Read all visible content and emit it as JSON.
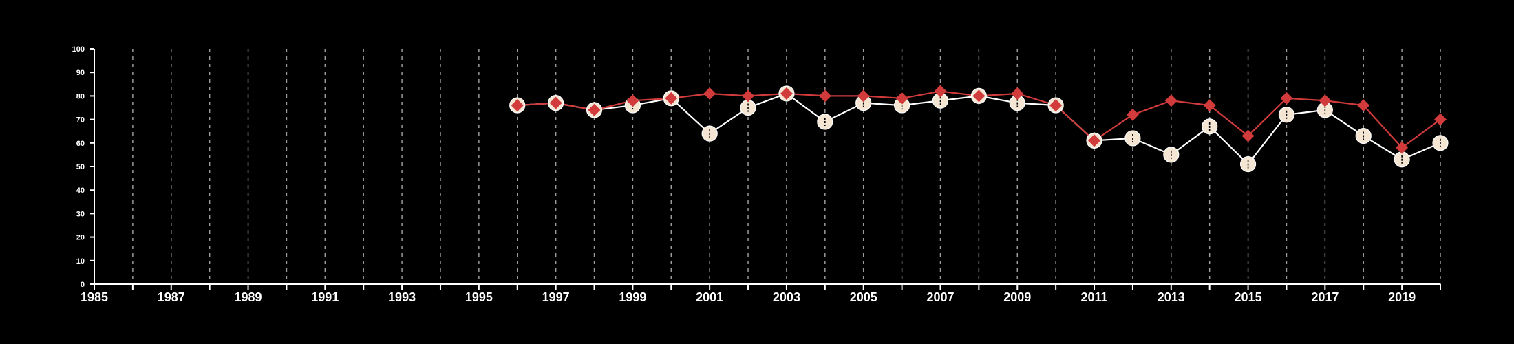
{
  "chart_data": {
    "type": "line",
    "title": "",
    "xlabel": "",
    "ylabel": "",
    "xlim": [
      1985,
      2020
    ],
    "ylim": [
      0,
      100
    ],
    "grid": "vertical dashed",
    "yticks": [
      0,
      10,
      20,
      30,
      40,
      50,
      60,
      70,
      80,
      90,
      100
    ],
    "xticks": [
      1985,
      1986,
      1987,
      1988,
      1989,
      1990,
      1991,
      1992,
      1993,
      1994,
      1995,
      1996,
      1997,
      1998,
      1999,
      2000,
      2001,
      2002,
      2003,
      2004,
      2005,
      2006,
      2007,
      2008,
      2009,
      2010,
      2011,
      2012,
      2013,
      2014,
      2015,
      2016,
      2017,
      2018,
      2019,
      2020
    ],
    "xtick_labels": [
      "1985",
      "1987",
      "1989",
      "1991",
      "1993",
      "1995",
      "1997",
      "1999",
      "2001",
      "2003",
      "2005",
      "2007",
      "2009",
      "2011",
      "2013",
      "2015",
      "2017",
      "2019"
    ],
    "series": [
      {
        "marker": "circle",
        "color": "#ffffff",
        "marker_fill": "#f5e6d3",
        "x": [
          1996,
          1997,
          1998,
          1999,
          2000,
          2001,
          2002,
          2003,
          2004,
          2005,
          2006,
          2007,
          2008,
          2009,
          2010,
          2011,
          2012,
          2013,
          2014,
          2015,
          2016,
          2017,
          2018,
          2019,
          2020
        ],
        "values": [
          76,
          77,
          74,
          76,
          79,
          64,
          75,
          81,
          69,
          77,
          76,
          78,
          80,
          77,
          76,
          61,
          62,
          55,
          67,
          51,
          72,
          74,
          63,
          53,
          60
        ]
      },
      {
        "marker": "diamond",
        "color": "#d13b3b",
        "marker_fill": "#d13b3b",
        "x": [
          1996,
          1997,
          1998,
          1999,
          2000,
          2001,
          2002,
          2003,
          2004,
          2005,
          2006,
          2007,
          2008,
          2009,
          2010,
          2011,
          2012,
          2013,
          2014,
          2015,
          2016,
          2017,
          2018,
          2019,
          2020
        ],
        "values": [
          76,
          77,
          74,
          78,
          79,
          81,
          80,
          81,
          80,
          80,
          79,
          82,
          80,
          81,
          76,
          61,
          72,
          78,
          76,
          63,
          79,
          78,
          76,
          58,
          70
        ]
      }
    ]
  }
}
